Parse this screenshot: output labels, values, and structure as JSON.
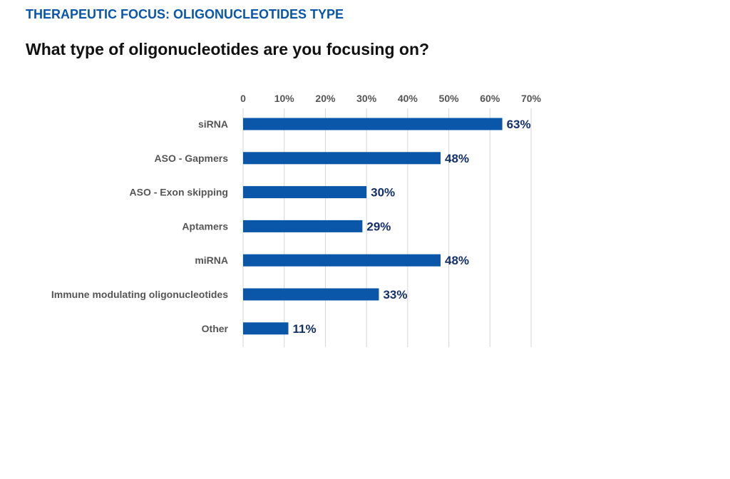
{
  "header": {
    "kicker": "THERAPEUTIC FOCUS: OLIGONUCLEOTIDES TYPE",
    "question": "What type of oligonucleotides are you focusing on?"
  },
  "colors": {
    "kicker": "#0a56a8",
    "bar": "#0a56a8",
    "value_label": "#14306b",
    "grid": "#d6d6d6"
  },
  "chart_data": {
    "type": "bar",
    "orientation": "horizontal",
    "categories": [
      "siRNA",
      "ASO - Gapmers",
      "ASO - Exon skipping",
      "Aptamers",
      "miRNA",
      "Immune modulating oligonucleotides",
      "Other"
    ],
    "values": [
      63,
      48,
      30,
      29,
      48,
      33,
      11
    ],
    "value_labels": [
      "63%",
      "48%",
      "30%",
      "29%",
      "48%",
      "33%",
      "11%"
    ],
    "x_ticks": [
      0,
      10,
      20,
      30,
      40,
      50,
      60,
      70
    ],
    "x_tick_labels": [
      "0",
      "10%",
      "20%",
      "30%",
      "40%",
      "50%",
      "60%",
      "70%"
    ],
    "xlim": [
      0,
      70
    ],
    "x_axis_position": "top",
    "grid": true,
    "legend": "none"
  }
}
